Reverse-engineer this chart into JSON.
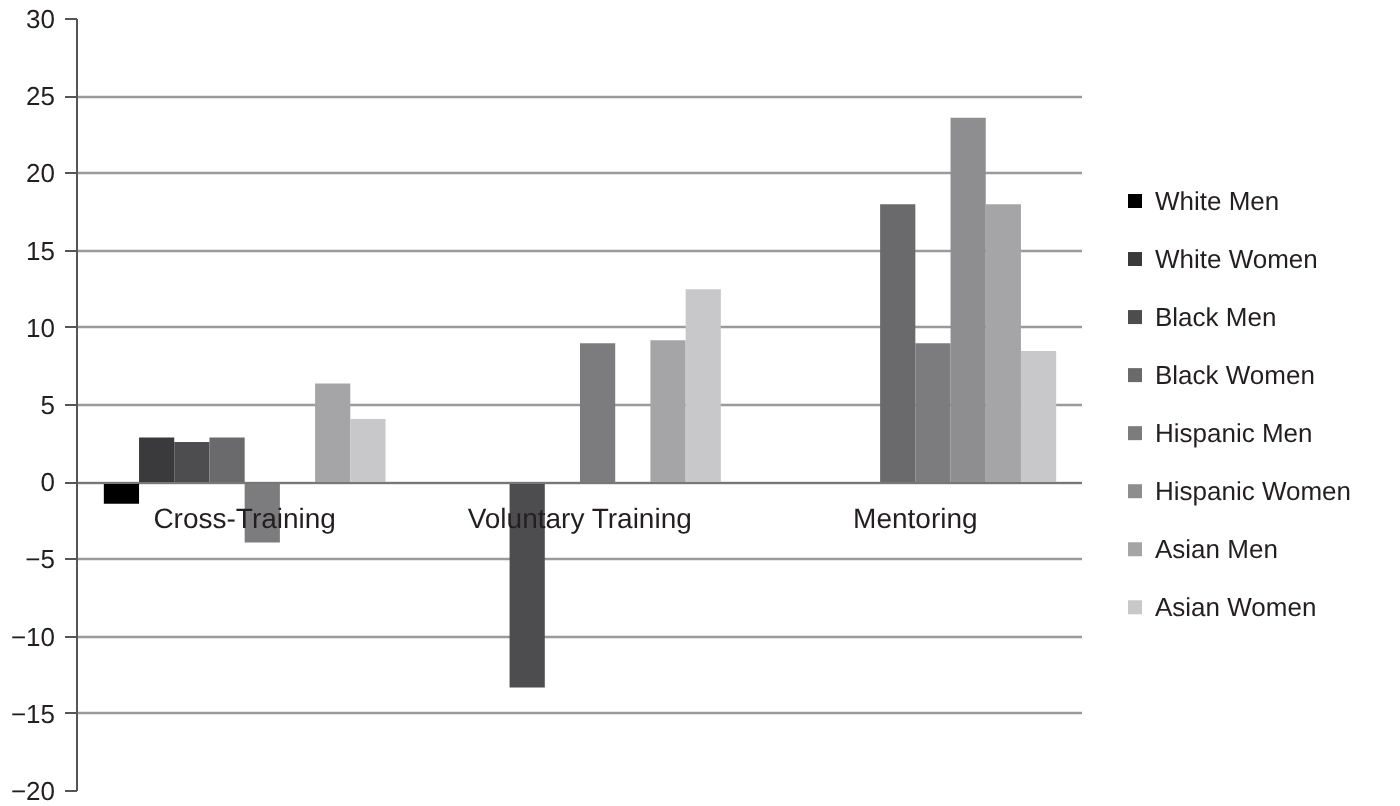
{
  "chart_data": {
    "type": "bar",
    "categories": [
      "Cross-Training",
      "Voluntary Training",
      "Mentoring"
    ],
    "series": [
      {
        "name": "White Men",
        "color": "#000000",
        "values": [
          -1.4,
          null,
          null
        ]
      },
      {
        "name": "White Women",
        "color": "#3a3a3c",
        "values": [
          2.9,
          null,
          null
        ]
      },
      {
        "name": "Black Men",
        "color": "#4d4d4f",
        "values": [
          2.6,
          -13.3,
          null
        ]
      },
      {
        "name": "Black Women",
        "color": "#6a6a6c",
        "values": [
          2.9,
          null,
          18
        ]
      },
      {
        "name": "Hispanic Men",
        "color": "#7c7c7e",
        "values": [
          -3.9,
          9,
          9
        ]
      },
      {
        "name": "Hispanic Women",
        "color": "#8e8e90",
        "values": [
          null,
          null,
          23.6
        ]
      },
      {
        "name": "Asian Men",
        "color": "#a5a5a7",
        "values": [
          6.4,
          9.2,
          18
        ]
      },
      {
        "name": "Asian Women",
        "color": "#c8c8ca",
        "values": [
          4.1,
          12.5,
          8.5
        ]
      }
    ],
    "ylim": [
      -20,
      30
    ],
    "yticks": [
      -20,
      -15,
      -10,
      -5,
      0,
      5,
      10,
      15,
      20,
      25,
      30
    ],
    "grid": "y",
    "legend": "right"
  }
}
